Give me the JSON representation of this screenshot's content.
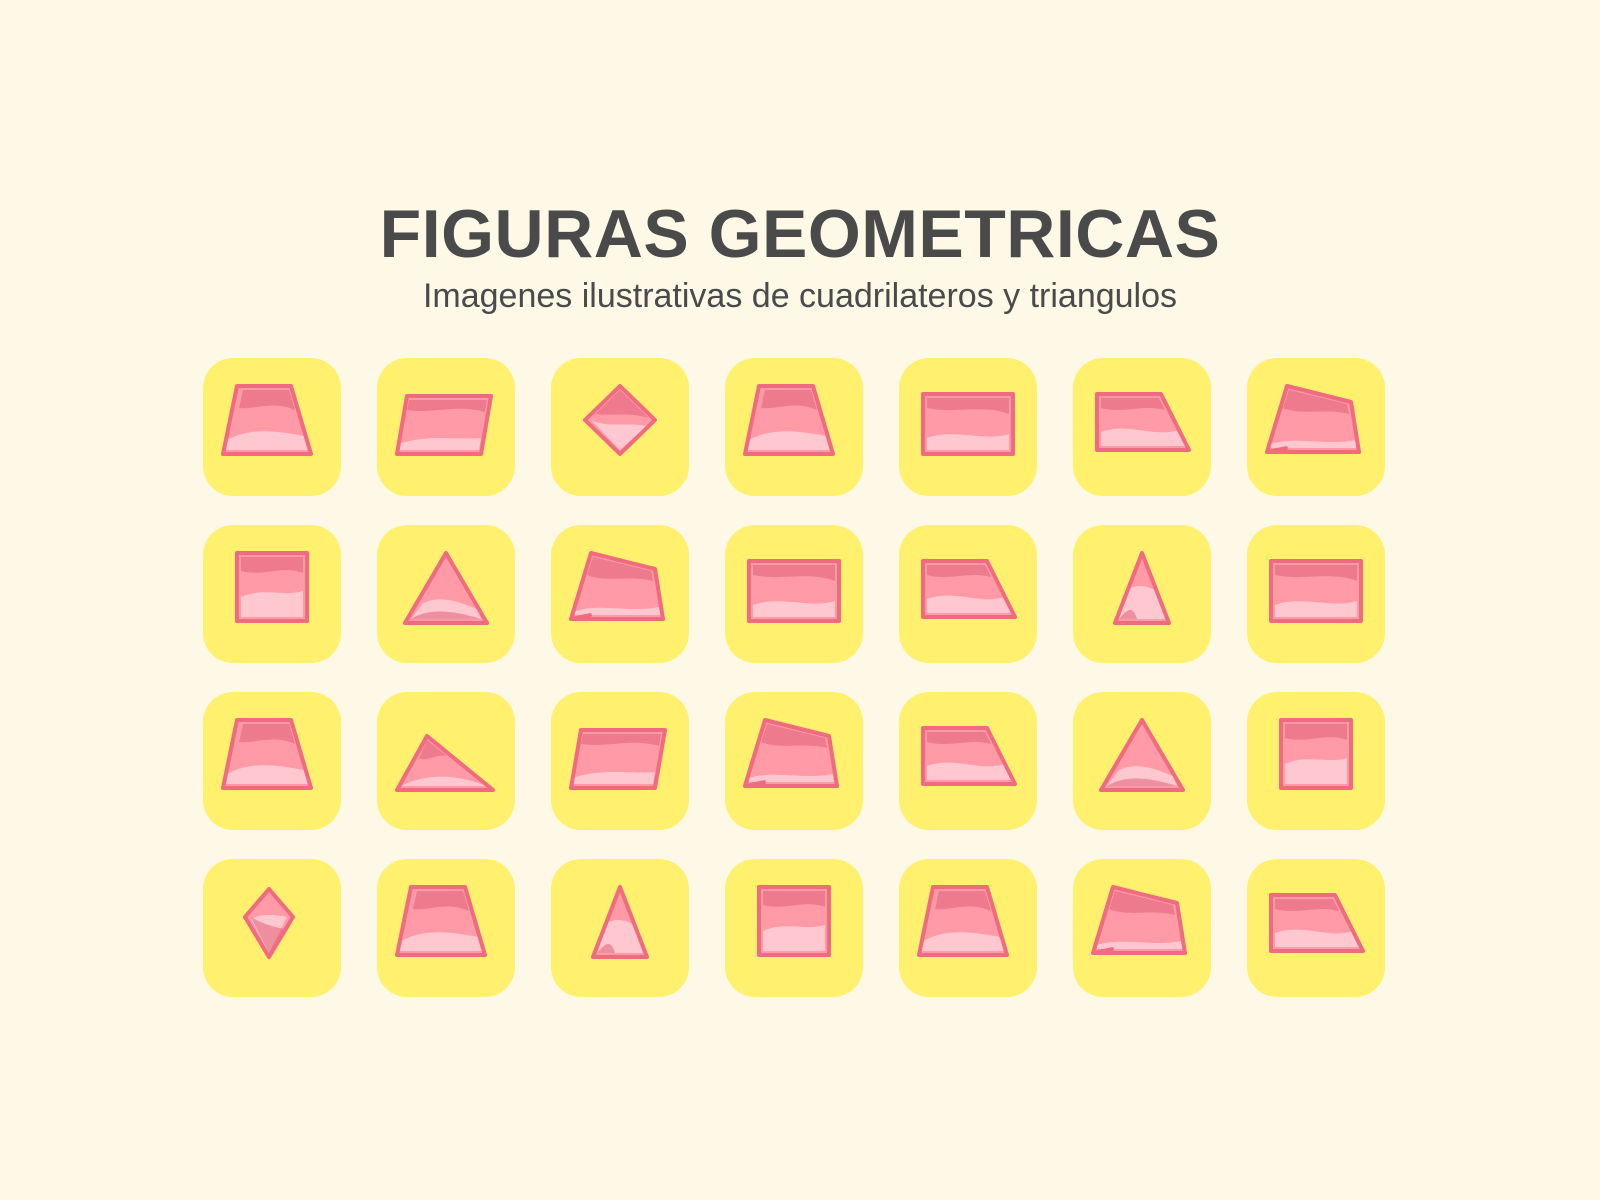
{
  "header": {
    "title": "FIGURAS GEOMETRICAS",
    "subtitle": "Imagenes ilustrativas de cuadrilateros y triangulos"
  },
  "colors": {
    "background": "#fdf9e6",
    "tile": "#fff06e",
    "shape_fill": "#ff9aa6",
    "shape_stroke": "#f06a80",
    "shape_light": "#ffd0d8",
    "shape_dark": "#e06078",
    "text": "#4a4a4a"
  },
  "tiles": [
    {
      "shape": "trapezoid-icon"
    },
    {
      "shape": "parallelogram-icon"
    },
    {
      "shape": "rhombus-icon"
    },
    {
      "shape": "trapezoid-icon"
    },
    {
      "shape": "rectangle-icon"
    },
    {
      "shape": "right-trapezoid-icon"
    },
    {
      "shape": "irregular-quadrilateral-icon"
    },
    {
      "shape": "square-icon"
    },
    {
      "shape": "triangle-icon"
    },
    {
      "shape": "irregular-quadrilateral-icon"
    },
    {
      "shape": "rectangle-icon"
    },
    {
      "shape": "right-trapezoid-icon"
    },
    {
      "shape": "isosceles-triangle-icon"
    },
    {
      "shape": "rectangle-icon"
    },
    {
      "shape": "trapezoid-icon"
    },
    {
      "shape": "obtuse-triangle-icon"
    },
    {
      "shape": "parallelogram-icon"
    },
    {
      "shape": "irregular-quadrilateral-icon"
    },
    {
      "shape": "right-trapezoid-icon"
    },
    {
      "shape": "triangle-icon"
    },
    {
      "shape": "square-icon"
    },
    {
      "shape": "kite-icon"
    },
    {
      "shape": "trapezoid-icon"
    },
    {
      "shape": "isosceles-triangle-icon"
    },
    {
      "shape": "square-icon"
    },
    {
      "shape": "trapezoid-icon"
    },
    {
      "shape": "irregular-quadrilateral-icon"
    },
    {
      "shape": "right-trapezoid-icon"
    }
  ]
}
